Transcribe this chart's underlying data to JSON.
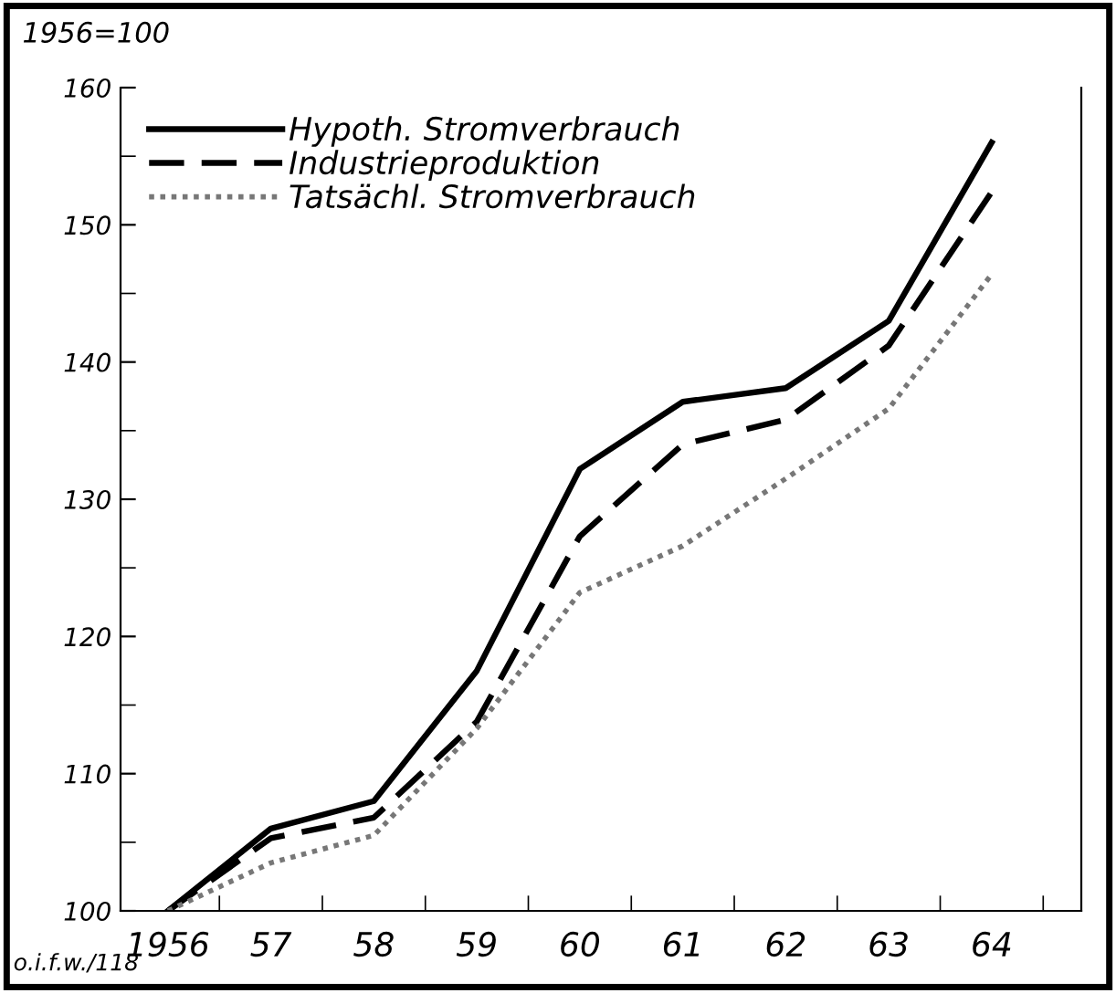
{
  "chart_data": {
    "type": "line",
    "ylabel": "1956=100",
    "annotations": [
      "o.i.f.w./118"
    ],
    "x": [
      1956,
      1957,
      1958,
      1959,
      1960,
      1961,
      1962,
      1963,
      1964
    ],
    "series": [
      {
        "name": "Hypoth. Stromverbrauch",
        "color": "#000000",
        "line_style": "solid",
        "values": [
          100,
          106,
          108,
          117.5,
          132.2,
          137.1,
          138.1,
          143,
          156
        ]
      },
      {
        "name": "Industrieproduktion",
        "color": "#000000",
        "line_style": "dashed",
        "values": [
          100,
          105.3,
          106.8,
          113.8,
          127.3,
          134,
          135.8,
          141.2,
          152.4
        ]
      },
      {
        "name": "Tatsächl. Stromverbrauch",
        "color": "#777777",
        "line_style": "dotted",
        "values": [
          100,
          103.5,
          105.5,
          113.3,
          123.2,
          126.6,
          131.5,
          136.6,
          146.4
        ]
      }
    ],
    "xlim": [
      1955.54,
      1964.87
    ],
    "xticks": [
      {
        "value": 1956,
        "label": "1956"
      },
      {
        "value": 1956.5,
        "label": null
      },
      {
        "value": 1957,
        "label": "57"
      },
      {
        "value": 1957.5,
        "label": null
      },
      {
        "value": 1958,
        "label": "58"
      },
      {
        "value": 1958.5,
        "label": null
      },
      {
        "value": 1959,
        "label": "59"
      },
      {
        "value": 1959.5,
        "label": null
      },
      {
        "value": 1960,
        "label": "60"
      },
      {
        "value": 1960.5,
        "label": null
      },
      {
        "value": 1961,
        "label": "61"
      },
      {
        "value": 1961.5,
        "label": null
      },
      {
        "value": 1962,
        "label": "62"
      },
      {
        "value": 1962.5,
        "label": null
      },
      {
        "value": 1963,
        "label": "63"
      },
      {
        "value": 1963.5,
        "label": null
      },
      {
        "value": 1964,
        "label": "64"
      },
      {
        "value": 1964.5,
        "label": null
      }
    ],
    "ylim": [
      100,
      160
    ],
    "yticks": [
      100,
      {
        "value": 105,
        "label": null
      },
      110,
      {
        "value": 115,
        "label": null
      },
      120,
      {
        "value": 125,
        "label": null
      },
      130,
      {
        "value": 135,
        "label": null
      },
      140,
      {
        "value": 145,
        "label": null
      },
      150,
      {
        "value": 155,
        "label": null
      },
      160
    ],
    "legend": "top left",
    "grid": false,
    "marker": "none"
  }
}
